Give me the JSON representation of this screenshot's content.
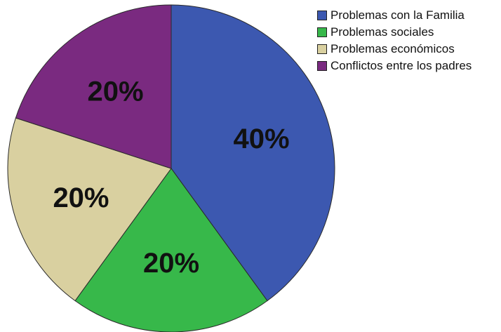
{
  "chart_data": {
    "type": "pie",
    "title": "",
    "legend_position": "top-right",
    "slices": [
      {
        "label": "Problemas con la Familia",
        "value": 40,
        "display": "40%",
        "color": "#3c58b0"
      },
      {
        "label": "Problemas sociales",
        "value": 20,
        "display": "20%",
        "color": "#37b84a"
      },
      {
        "label": "Problemas económicos",
        "value": 20,
        "display": "20%",
        "color": "#d9d0a0"
      },
      {
        "label": "Conflictos entre los padres",
        "value": 20,
        "display": "20%",
        "color": "#7a2a80"
      }
    ]
  }
}
